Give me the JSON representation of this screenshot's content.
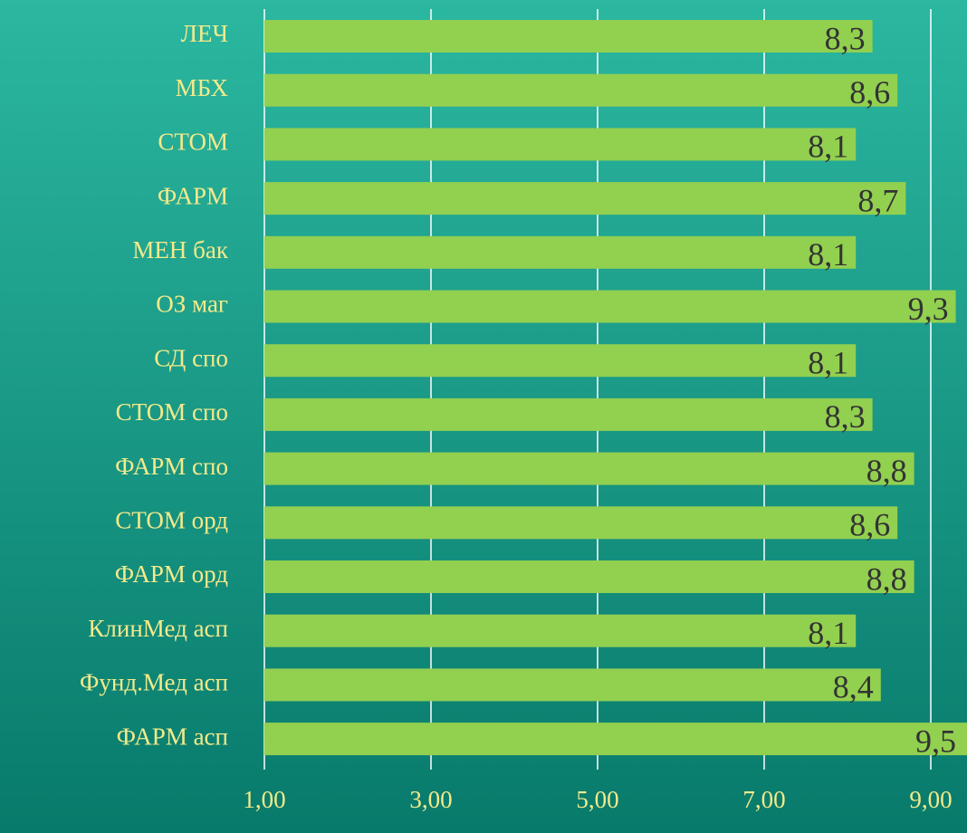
{
  "chart_data": {
    "type": "hbar",
    "categories": [
      "ЛЕЧ",
      "МБХ",
      "СТОМ",
      "ФАРМ",
      "МЕН бак",
      "ОЗ маг",
      "СД спо",
      "СТОМ спо",
      "ФАРМ спо",
      "СТОМ орд",
      "ФАРМ орд",
      "КлинМед асп",
      "Фунд.Мед асп",
      "ФАРМ асп"
    ],
    "values": [
      8.3,
      8.6,
      8.1,
      8.7,
      8.1,
      9.3,
      8.1,
      8.3,
      8.8,
      8.6,
      8.8,
      8.1,
      8.4,
      9.5
    ],
    "value_labels": [
      "8,3",
      "8,6",
      "8,1",
      "8,7",
      "8,1",
      "9,3",
      "8,1",
      "8,3",
      "8,8",
      "8,6",
      "8,8",
      "8,1",
      "8,4",
      "9,5"
    ],
    "color": "#92d050",
    "xlim": [
      1,
      9.5
    ],
    "xticks": [
      {
        "value": 1,
        "label": "1,00"
      },
      {
        "value": 3,
        "label": "3,00"
      },
      {
        "value": 5,
        "label": "5,00"
      },
      {
        "value": 7,
        "label": "7,00"
      },
      {
        "value": 9,
        "label": "9,00"
      }
    ],
    "grid": true
  }
}
